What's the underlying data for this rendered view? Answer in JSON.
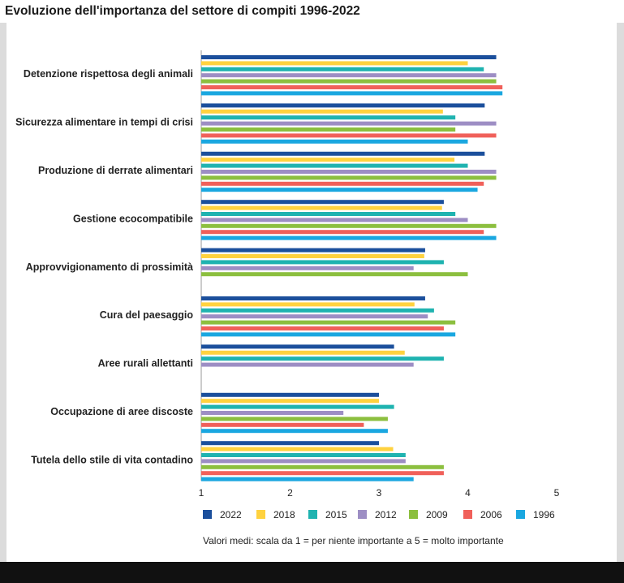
{
  "chart_data": {
    "type": "bar",
    "orientation": "horizontal",
    "title": "Evoluzione dell'importanza del settore di compiti 1996-2022",
    "categories": [
      "Detenzione rispettosa degli animali",
      "Sicurezza alimentare in tempi di crisi",
      "Produzione di derrate alimentari",
      "Gestione ecocompatibile",
      "Approvvigionamento di prossimità",
      "Cura del paesaggio",
      "Aree rurali allettanti",
      "Occupazione di aree discoste",
      "Tutela dello stile di vita contadino"
    ],
    "series": [
      {
        "name": "2022",
        "color": "#1b4f9c",
        "values": [
          4.32,
          4.19,
          4.19,
          3.73,
          3.52,
          3.52,
          3.17,
          3.0,
          3.0
        ]
      },
      {
        "name": "2018",
        "color": "#ffd23f",
        "values": [
          4.0,
          3.72,
          3.85,
          3.71,
          3.51,
          3.4,
          3.29,
          3.0,
          3.16
        ]
      },
      {
        "name": "2015",
        "color": "#1fb3b0",
        "values": [
          4.18,
          3.86,
          4.0,
          3.86,
          3.73,
          3.62,
          3.73,
          3.17,
          3.3
        ]
      },
      {
        "name": "2012",
        "color": "#9d8ec4",
        "values": [
          4.32,
          4.32,
          4.32,
          4.0,
          3.39,
          3.55,
          3.39,
          2.6,
          3.3
        ]
      },
      {
        "name": "2009",
        "color": "#8cbf3f",
        "values": [
          4.32,
          3.86,
          4.32,
          4.32,
          4.0,
          3.86,
          null,
          3.1,
          3.73
        ]
      },
      {
        "name": "2006",
        "color": "#f0605a",
        "values": [
          4.39,
          4.32,
          4.18,
          4.18,
          null,
          3.73,
          null,
          2.83,
          3.73
        ]
      },
      {
        "name": "1996",
        "color": "#1aa7e0",
        "values": [
          4.39,
          4.0,
          4.11,
          4.32,
          null,
          3.86,
          null,
          3.1,
          3.39
        ]
      }
    ],
    "xlim": [
      1,
      5
    ],
    "xticks": [
      "1",
      "2",
      "3",
      "4",
      "5"
    ],
    "xlabel": "",
    "ylabel": "",
    "legend_position": "bottom",
    "note": "Valori medi: scala da 1 = per niente importante a 5 = molto importante"
  }
}
